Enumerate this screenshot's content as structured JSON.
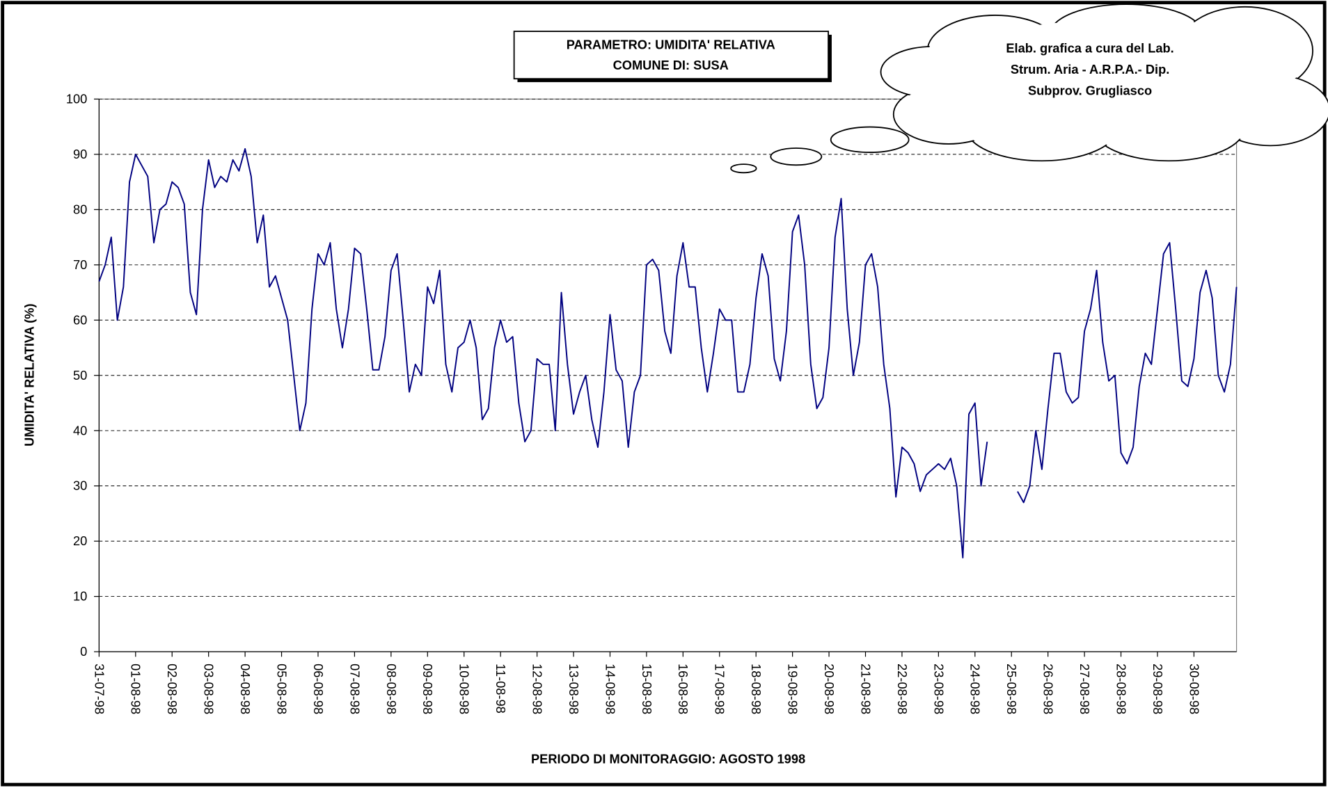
{
  "chart_data": {
    "type": "line",
    "title": [
      "PARAMETRO: UMIDITA' RELATIVA",
      "COMUNE DI: SUSA"
    ],
    "annotation": [
      "Elab. grafica a cura del Lab.",
      "Strum. Aria - A.R.P.A.- Dip.",
      "Subprov. Grugliasco"
    ],
    "xlabel": "PERIODO DI MONITORAGGIO: AGOSTO 1998",
    "ylabel": "UMIDITA' RELATIVA (%)",
    "ylim": [
      0,
      100
    ],
    "yticks": [
      0,
      10,
      20,
      30,
      40,
      50,
      60,
      70,
      80,
      90,
      100
    ],
    "grid": true,
    "categories": [
      "31-07-98",
      null,
      null,
      null,
      null,
      null,
      "01-08-98",
      null,
      null,
      null,
      null,
      null,
      "02-08-98",
      null,
      null,
      null,
      null,
      null,
      "03-08-98",
      null,
      null,
      null,
      null,
      null,
      "04-08-98",
      null,
      null,
      null,
      null,
      null,
      "05-08-98",
      null,
      null,
      null,
      null,
      null,
      "06-08-98",
      null,
      null,
      null,
      null,
      null,
      "07-08-98",
      null,
      null,
      null,
      null,
      null,
      "08-08-98",
      null,
      null,
      null,
      null,
      null,
      "09-08-98",
      null,
      null,
      null,
      null,
      null,
      "10-08-98",
      null,
      null,
      null,
      null,
      null,
      "11-08-98",
      null,
      null,
      null,
      null,
      null,
      "12-08-98",
      null,
      null,
      null,
      null,
      null,
      "13-08-98",
      null,
      null,
      null,
      null,
      null,
      "14-08-98",
      null,
      null,
      null,
      null,
      null,
      "15-08-98",
      null,
      null,
      null,
      null,
      null,
      "16-08-98",
      null,
      null,
      null,
      null,
      null,
      "17-08-98",
      null,
      null,
      null,
      null,
      null,
      "18-08-98",
      null,
      null,
      null,
      null,
      null,
      "19-08-98",
      null,
      null,
      null,
      null,
      null,
      "20-08-98",
      null,
      null,
      null,
      null,
      null,
      "21-08-98",
      null,
      null,
      null,
      null,
      null,
      "22-08-98",
      null,
      null,
      null,
      null,
      null,
      "23-08-98",
      null,
      null,
      null,
      null,
      null,
      "24-08-98",
      null,
      null,
      null,
      null,
      null,
      "25-08-98",
      null,
      null,
      null,
      null,
      null,
      "26-08-98",
      null,
      null,
      null,
      null,
      null,
      "27-08-98",
      null,
      null,
      null,
      null,
      null,
      "28-08-98",
      null,
      null,
      null,
      null,
      null,
      "29-08-98",
      null,
      null,
      null,
      null,
      null,
      "30-08-98",
      null,
      null,
      null,
      null,
      null,
      null,
      null
    ],
    "series": [
      {
        "name": "UMIDITA' RELATIVA",
        "color": "#000080",
        "values": [
          67,
          70,
          75,
          60,
          66,
          85,
          90,
          88,
          86,
          74,
          80,
          81,
          85,
          84,
          81,
          65,
          61,
          80,
          89,
          84,
          86,
          85,
          89,
          87,
          91,
          86,
          74,
          79,
          66,
          68,
          64,
          60,
          50,
          40,
          45,
          62,
          72,
          70,
          74,
          62,
          55,
          62,
          73,
          72,
          62,
          51,
          51,
          57,
          69,
          72,
          60,
          47,
          52,
          50,
          66,
          63,
          69,
          52,
          47,
          55,
          56,
          60,
          55,
          42,
          44,
          55,
          60,
          56,
          57,
          45,
          38,
          40,
          53,
          52,
          52,
          40,
          65,
          52,
          43,
          47,
          50,
          42,
          37,
          47,
          61,
          51,
          49,
          37,
          47,
          50,
          70,
          71,
          69,
          58,
          54,
          68,
          74,
          66,
          66,
          55,
          47,
          54,
          62,
          60,
          60,
          47,
          47,
          52,
          64,
          72,
          68,
          53,
          49,
          58,
          76,
          79,
          70,
          52,
          44,
          46,
          55,
          75,
          82,
          62,
          50,
          56,
          70,
          72,
          66,
          52,
          44,
          28,
          37,
          36,
          34,
          29,
          32,
          33,
          34,
          33,
          35,
          30,
          17,
          43,
          45,
          30,
          38,
          null,
          null,
          null,
          null,
          29,
          27,
          30,
          40,
          33,
          44,
          54,
          54,
          47,
          45,
          46,
          58,
          62,
          69,
          56,
          49,
          50,
          36,
          34,
          37,
          48,
          54,
          52,
          62,
          72,
          74,
          62,
          49,
          48,
          53,
          65,
          69,
          64,
          50,
          47,
          52,
          66
        ]
      }
    ]
  }
}
